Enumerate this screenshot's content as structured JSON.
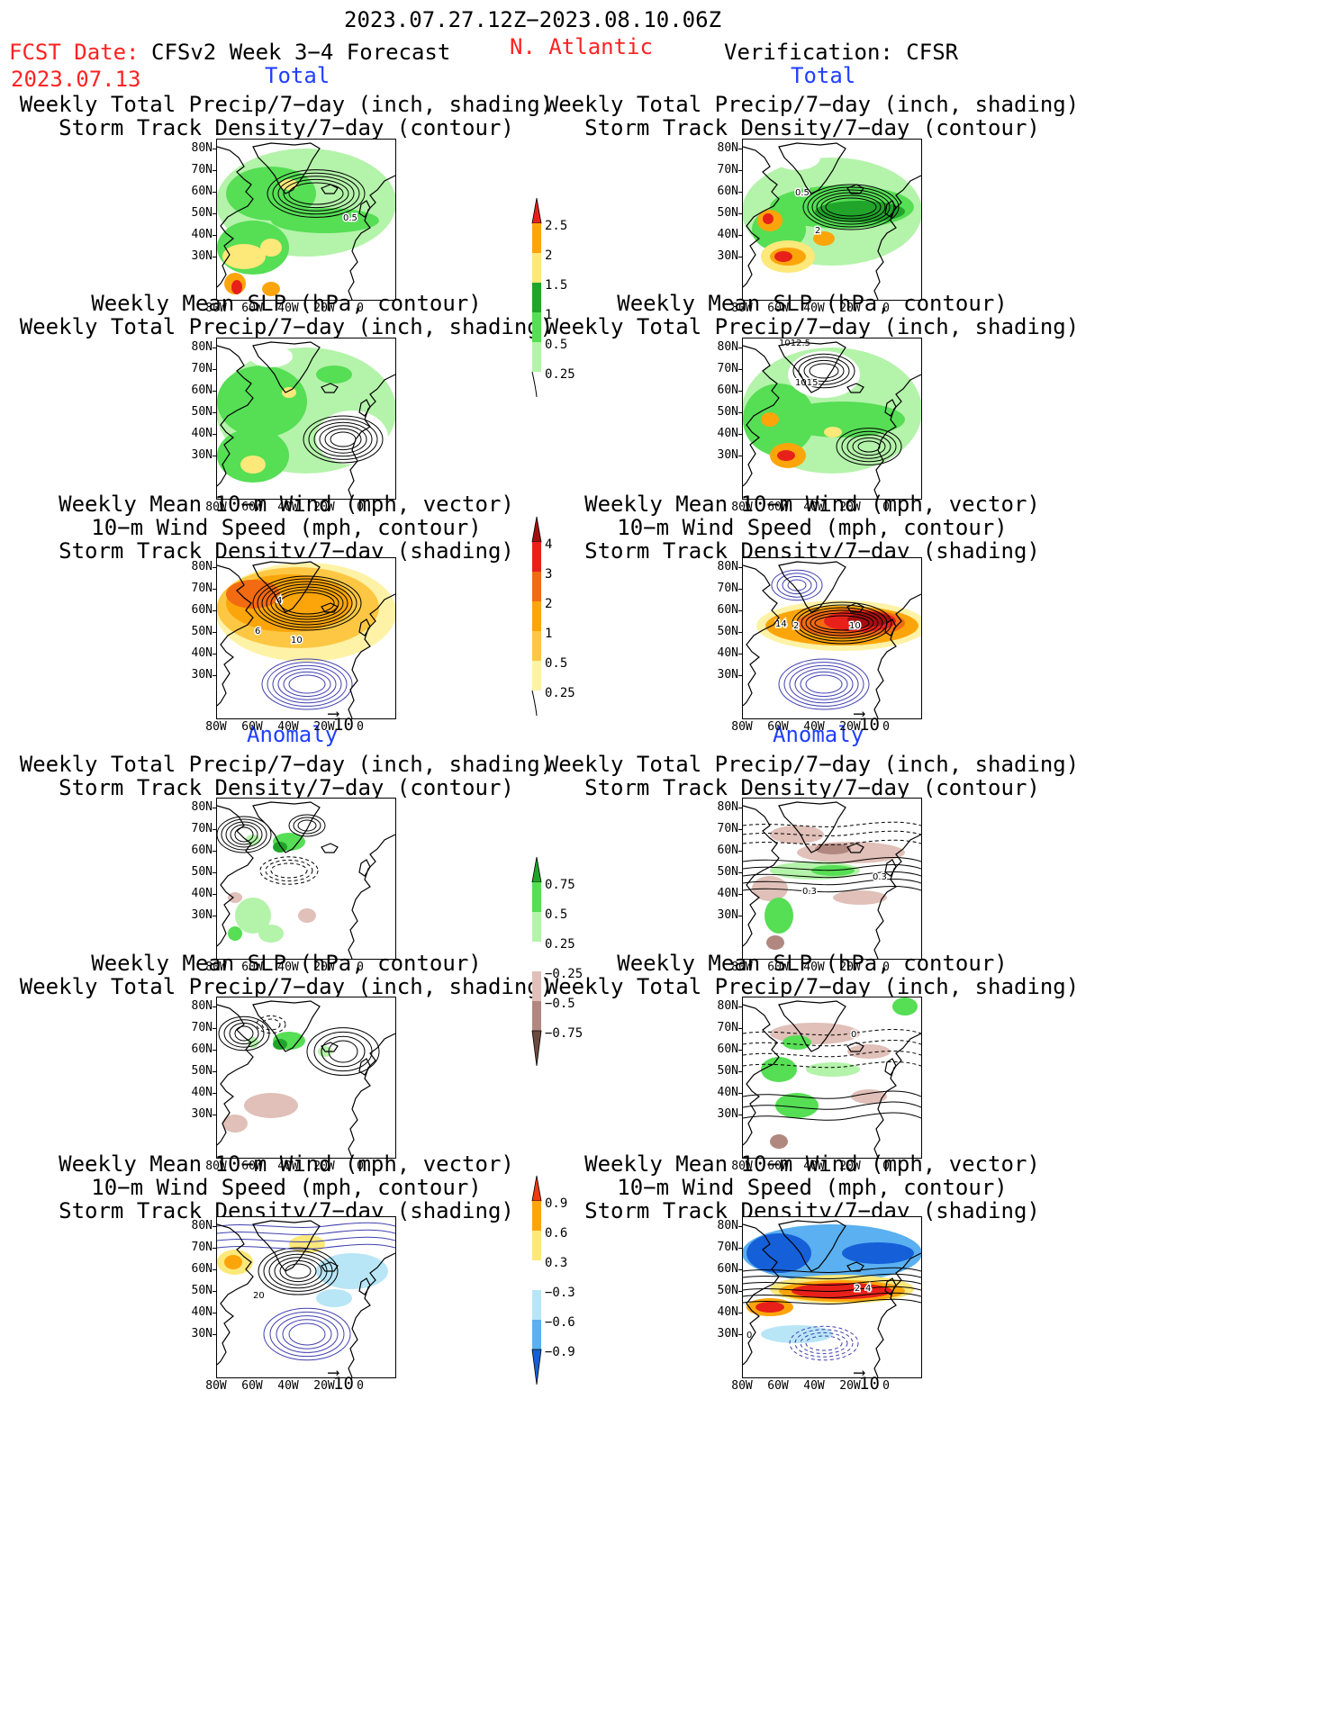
{
  "header": {
    "period": "2023.07.27.12Z−2023.08.10.06Z",
    "fcst_label": "FCST Date:",
    "fcst_date": "2023.07.13",
    "model": "CFSv2 Week 3−4 Forecast",
    "region": "N. Atlantic",
    "verification": "Verification: CFSR"
  },
  "sections": {
    "total": "Total",
    "anomaly": "Anomaly"
  },
  "titles": {
    "precip_storm": [
      "Weekly Total Precip/7−day (inch, shading)",
      "Storm Track Density/7−day (contour)"
    ],
    "slp_precip": [
      "Weekly Mean SLP (hPa, contour)",
      "Weekly Total Precip/7−day (inch, shading)"
    ],
    "wind_storm": [
      "Weekly Mean 10−m Wind (mph, vector)",
      "10−m Wind Speed (mph, contour)",
      "Storm Track Density/7−day (shading)"
    ]
  },
  "axes": {
    "y_ticks": [
      "80N",
      "70N",
      "60N",
      "50N",
      "40N",
      "30N"
    ],
    "x_ticks": [
      "80W",
      "60W",
      "40W",
      "20W",
      "0"
    ]
  },
  "vector_ref": "10",
  "colorbars": {
    "precip_total": {
      "labels": [
        "2.5",
        "2",
        "1.5",
        "1",
        "0.5",
        "0.25"
      ],
      "colors": [
        "#e8201a",
        "#fca50a",
        "#fde87a",
        "#20a52a",
        "#56de55",
        "#b4f3aa"
      ]
    },
    "storm_total": {
      "labels": [
        "4",
        "3",
        "2",
        "1",
        "0.5",
        "0.25"
      ],
      "colors": [
        "#a30f0f",
        "#e8201a",
        "#f26a12",
        "#fca50a",
        "#fdc743",
        "#fef2a6"
      ]
    },
    "precip_anom": {
      "labels": [
        "0.75",
        "0.5",
        "0.25",
        "−0.25",
        "−0.5",
        "−0.75"
      ],
      "colors": [
        "#20a52a",
        "#56de55",
        "#b4f3aa",
        "#ffffff",
        "#e0c0b8",
        "#b08880",
        "#6b4a40"
      ]
    },
    "storm_anom": {
      "labels": [
        "0.9",
        "0.6",
        "0.3",
        "−0.3",
        "−0.6",
        "−0.9"
      ],
      "colors": [
        "#f03a10",
        "#fca50a",
        "#fde87a",
        "#ffffff",
        "#b8e6f7",
        "#5ab0f0",
        "#1560d8"
      ]
    }
  },
  "contour_labels": {
    "p1_left": "0.5",
    "p1_right_a": "0.5",
    "p1_right_b": "2",
    "p2_right_a": "1012.5",
    "p2_right_b": "1015",
    "p3_left_a": "4",
    "p3_left_b": "6",
    "p3_left_c": "10",
    "p3_right_a": "14",
    "p3_right_b": "2",
    "p3_right_c": "10",
    "p4_right_a": "0.3",
    "p4_right_b": "0.3",
    "p5_right": "0",
    "p6_left": "20",
    "p6_right_a": "2",
    "p6_right_b": "4",
    "p6_right_c": "0"
  }
}
